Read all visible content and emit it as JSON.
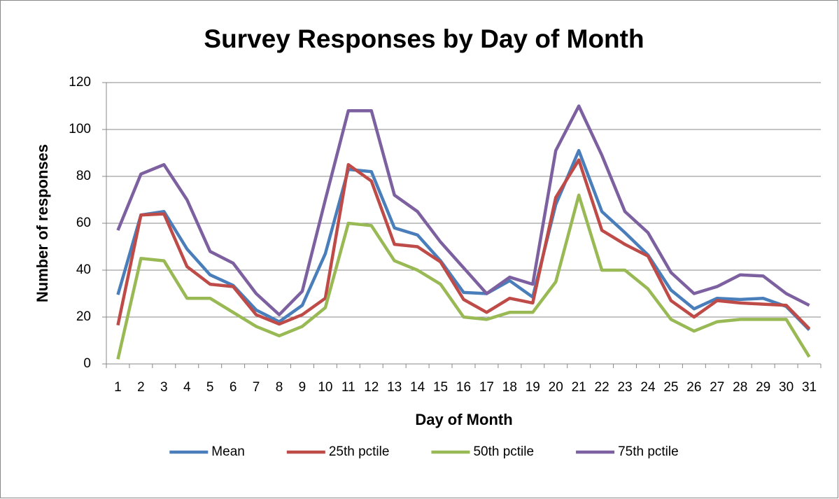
{
  "chart_data": {
    "type": "line",
    "title": "Survey Responses by Day of Month",
    "xlabel": "Day of Month",
    "ylabel": "Number of  responses",
    "categories": [
      "1",
      "2",
      "3",
      "4",
      "5",
      "6",
      "7",
      "8",
      "9",
      "10",
      "11",
      "12",
      "13",
      "14",
      "15",
      "16",
      "17",
      "18",
      "19",
      "20",
      "21",
      "22",
      "23",
      "24",
      "25",
      "26",
      "27",
      "28",
      "29",
      "30",
      "31"
    ],
    "series": [
      {
        "name": "Mean",
        "color": "#4a7ebb",
        "values": [
          29.5,
          63.5,
          65,
          49,
          38,
          33.5,
          23,
          18,
          25,
          47,
          83,
          82,
          58,
          55,
          44,
          30.5,
          30,
          35.5,
          28.5,
          68,
          91,
          65,
          56,
          46.5,
          31.5,
          23.5,
          28,
          27.5,
          28,
          24.5,
          14.5
        ]
      },
      {
        "name": "25th pctile",
        "color": "#be4b48",
        "values": [
          16.5,
          63.5,
          64,
          41.5,
          34,
          33,
          21,
          17,
          21,
          28,
          85,
          78,
          51,
          50,
          43.5,
          27.5,
          22,
          28,
          26,
          71,
          87,
          57,
          51,
          46,
          27,
          20,
          27,
          26,
          25.5,
          25,
          15
        ]
      },
      {
        "name": "50th pctile",
        "color": "#98b954",
        "values": [
          2,
          45,
          44,
          28,
          28,
          22,
          16,
          12,
          16,
          24,
          60,
          59,
          44,
          40,
          34,
          20,
          19,
          22,
          22,
          35,
          72,
          40,
          40,
          32,
          19,
          14,
          18,
          19,
          19,
          19,
          3
        ]
      },
      {
        "name": "75th pctile",
        "color": "#7d60a0",
        "values": [
          57,
          81,
          85,
          70,
          48,
          43,
          30,
          21,
          31,
          70,
          108,
          108,
          72,
          65,
          52,
          41,
          30,
          37,
          34,
          91,
          110,
          89,
          65,
          56,
          39,
          30,
          33,
          38,
          37.5,
          30,
          25
        ]
      }
    ],
    "ylim": [
      0,
      120
    ],
    "yticks": [
      0,
      20,
      40,
      60,
      80,
      100,
      120
    ],
    "grid": true,
    "legend": "bottom"
  }
}
